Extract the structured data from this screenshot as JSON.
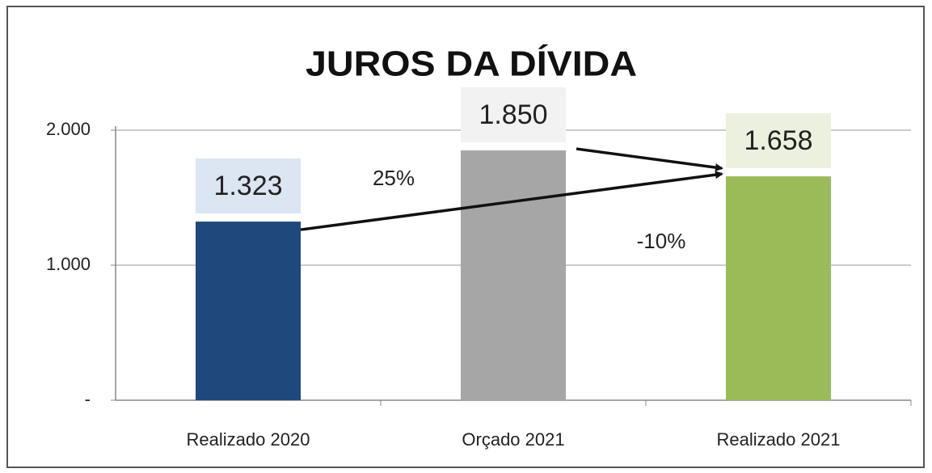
{
  "chart_data": {
    "type": "bar",
    "title": "JUROS DA DÍVIDA",
    "categories": [
      "Realizado 2020",
      "Orçado 2021",
      "Realizado 2021"
    ],
    "values": [
      1323,
      1850,
      1658
    ],
    "value_labels": [
      "1.323",
      "1.850",
      "1.658"
    ],
    "colors": [
      "#1f497d",
      "#a6a6a6",
      "#9bbb59"
    ],
    "label_backgrounds": [
      "#dce6f2",
      "#f2f2f2",
      "#ebf1de"
    ],
    "ylim": [
      0,
      2000
    ],
    "yticks": [
      {
        "value": 0,
        "label": "-"
      },
      {
        "value": 1000,
        "label": "1.000"
      },
      {
        "value": 2000,
        "label": "2.000"
      }
    ],
    "grid": true,
    "annotations": [
      {
        "text": "25%"
      },
      {
        "text": "-10%"
      }
    ]
  }
}
